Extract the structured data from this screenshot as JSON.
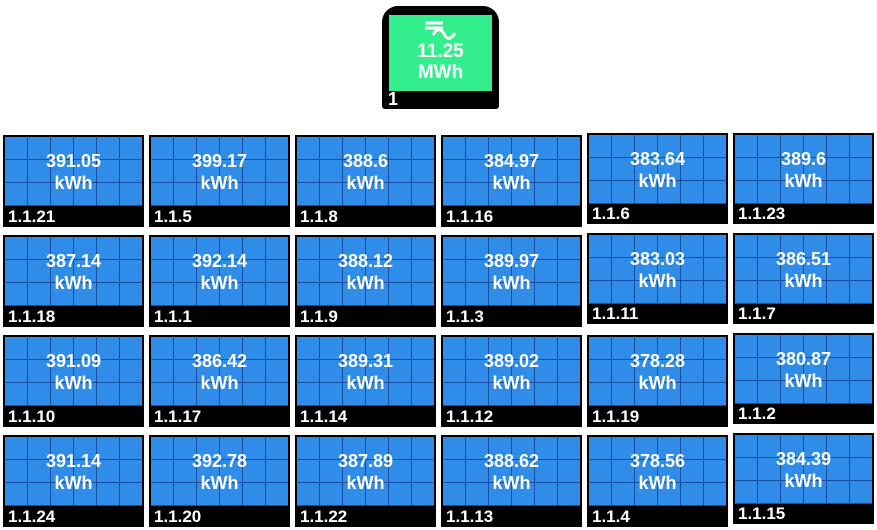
{
  "colors": {
    "inverter_screen": "#33ee8c",
    "panel_face": "#2f8ce8",
    "panel_frame": "#000000",
    "text": "#ffffff"
  },
  "inverter": {
    "icon": "ac-dc-icon",
    "value": "11.25",
    "unit": "MWh",
    "id": "1"
  },
  "panels": [
    {
      "value": "391.05",
      "unit": "kWh",
      "id": "1.1.21"
    },
    {
      "value": "399.17",
      "unit": "kWh",
      "id": "1.1.5"
    },
    {
      "value": "388.6",
      "unit": "kWh",
      "id": "1.1.8"
    },
    {
      "value": "384.97",
      "unit": "kWh",
      "id": "1.1.16"
    },
    {
      "value": "383.64",
      "unit": "kWh",
      "id": "1.1.6"
    },
    {
      "value": "389.6",
      "unit": "kWh",
      "id": "1.1.23"
    },
    {
      "value": "387.14",
      "unit": "kWh",
      "id": "1.1.18"
    },
    {
      "value": "392.14",
      "unit": "kWh",
      "id": "1.1.1"
    },
    {
      "value": "388.12",
      "unit": "kWh",
      "id": "1.1.9"
    },
    {
      "value": "389.97",
      "unit": "kWh",
      "id": "1.1.3"
    },
    {
      "value": "383.03",
      "unit": "kWh",
      "id": "1.1.11"
    },
    {
      "value": "386.51",
      "unit": "kWh",
      "id": "1.1.7"
    },
    {
      "value": "391.09",
      "unit": "kWh",
      "id": "1.1.10"
    },
    {
      "value": "386.42",
      "unit": "kWh",
      "id": "1.1.17"
    },
    {
      "value": "389.31",
      "unit": "kWh",
      "id": "1.1.14"
    },
    {
      "value": "389.02",
      "unit": "kWh",
      "id": "1.1.12"
    },
    {
      "value": "378.28",
      "unit": "kWh",
      "id": "1.1.19"
    },
    {
      "value": "380.87",
      "unit": "kWh",
      "id": "1.1.2"
    },
    {
      "value": "391.14",
      "unit": "kWh",
      "id": "1.1.24"
    },
    {
      "value": "392.78",
      "unit": "kWh",
      "id": "1.1.20"
    },
    {
      "value": "387.89",
      "unit": "kWh",
      "id": "1.1.22"
    },
    {
      "value": "388.62",
      "unit": "kWh",
      "id": "1.1.13"
    },
    {
      "value": "378.56",
      "unit": "kWh",
      "id": "1.1.4"
    },
    {
      "value": "384.39",
      "unit": "kWh",
      "id": "1.1.15"
    }
  ]
}
